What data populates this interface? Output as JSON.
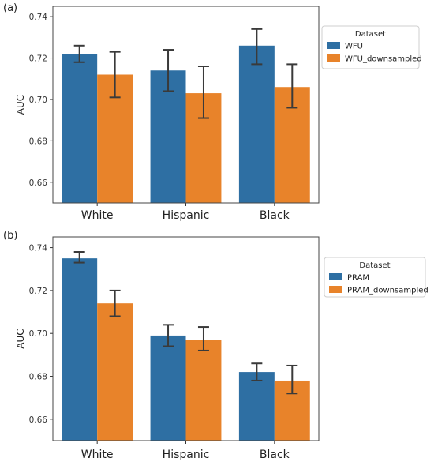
{
  "chart_data": [
    {
      "panel": "(a)",
      "type": "bar",
      "categories": [
        "White",
        "Hispanic",
        "Black"
      ],
      "ylabel": "AUC",
      "ylim": [
        0.65,
        0.745
      ],
      "yticks": [
        "0.66",
        "0.68",
        "0.70",
        "0.72",
        "0.74"
      ],
      "legend": {
        "title": "Dataset",
        "position": "right"
      },
      "series": [
        {
          "name": "WFU",
          "color": "#2e6fa3",
          "values": [
            0.722,
            0.714,
            0.726
          ],
          "err_low": [
            0.718,
            0.704,
            0.717
          ],
          "err_high": [
            0.726,
            0.724,
            0.734
          ]
        },
        {
          "name": "WFU_downsampled",
          "color": "#e8832a",
          "values": [
            0.712,
            0.703,
            0.706
          ],
          "err_low": [
            0.701,
            0.691,
            0.696
          ],
          "err_high": [
            0.723,
            0.716,
            0.717
          ]
        }
      ]
    },
    {
      "panel": "(b)",
      "type": "bar",
      "categories": [
        "White",
        "Hispanic",
        "Black"
      ],
      "ylabel": "AUC",
      "ylim": [
        0.65,
        0.745
      ],
      "yticks": [
        "0.66",
        "0.68",
        "0.70",
        "0.72",
        "0.74"
      ],
      "legend": {
        "title": "Dataset",
        "position": "right"
      },
      "series": [
        {
          "name": "PRAM",
          "color": "#2e6fa3",
          "values": [
            0.735,
            0.699,
            0.682
          ],
          "err_low": [
            0.733,
            0.694,
            0.678
          ],
          "err_high": [
            0.738,
            0.704,
            0.686
          ]
        },
        {
          "name": "PRAM_downsampled",
          "color": "#e8832a",
          "values": [
            0.714,
            0.697,
            0.678
          ],
          "err_low": [
            0.708,
            0.692,
            0.672
          ],
          "err_high": [
            0.72,
            0.703,
            0.685
          ]
        }
      ]
    }
  ]
}
